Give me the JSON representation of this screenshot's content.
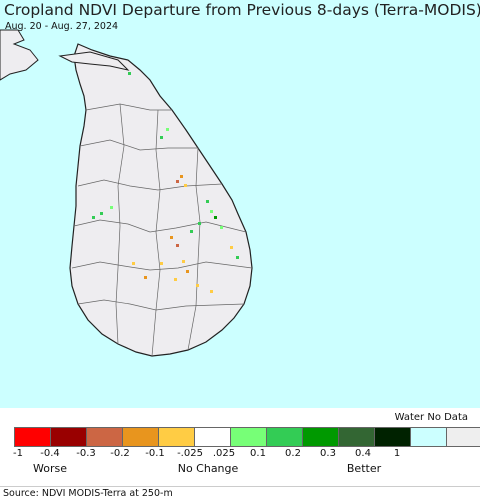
{
  "title": "Cropland NDVI Departure from Previous 8-days (Terra-MODIS)",
  "date_range": "Aug. 20 - Aug. 27, 2024",
  "legend": {
    "water_label": "Water No Data",
    "colors": [
      "#ff0000",
      "#990000",
      "#cc6644",
      "#e8951e",
      "#ffcc44",
      "#ffffff",
      "#77ff77",
      "#33cc55",
      "#009900",
      "#336633",
      "#002200",
      "#ccffff",
      "#eeeeee"
    ],
    "ticks": [
      "-1",
      "-0.4",
      "-0.3",
      "-0.2",
      "-0.1",
      "-.025",
      ".025",
      "0.1",
      "0.2",
      "0.3",
      "0.4",
      "1"
    ],
    "worse_label": "Worse",
    "no_change_label": "No Change",
    "better_label": "Better"
  },
  "source": "Source: NDVI MODIS-Terra at 250-m",
  "colors": {
    "ocean": "#ccffff",
    "land": "#eeedf0",
    "border": "#555555"
  }
}
